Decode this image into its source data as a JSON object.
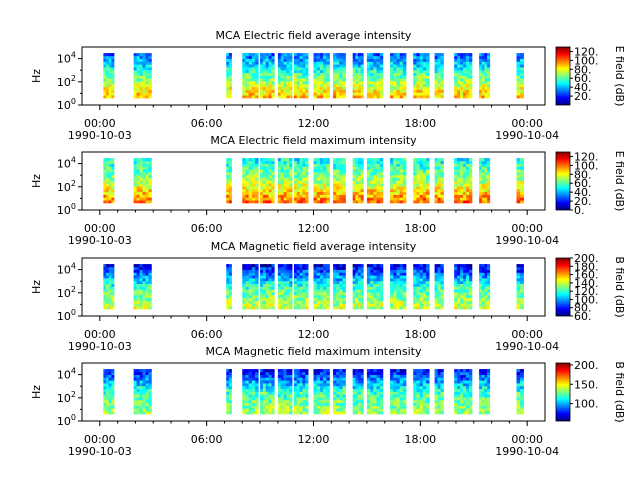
{
  "figure": {
    "x_tick_labels": [
      "00:00",
      "06:00",
      "12:00",
      "18:00",
      "00:00"
    ],
    "date_labels": [
      "1990-10-03",
      "1990-10-04"
    ]
  },
  "chart_data": [
    {
      "type": "heatmap",
      "title": "MCA  Electric field average intensity",
      "ylabel": "Hz",
      "colorbar_label": "E field (dB)",
      "y_scale": "log",
      "y_ticks": [
        {
          "base": "10",
          "exp": "0"
        },
        {
          "base": "10",
          "exp": "2"
        },
        {
          "base": "10",
          "exp": "4"
        }
      ],
      "ylim_hz": [
        1,
        100000
      ],
      "xlim_hours": [
        -1,
        25
      ],
      "colorbar_ticks": [
        "20.",
        "40.",
        "60.",
        "80.",
        "100.",
        "120."
      ],
      "colorbar_tick_values": [
        20,
        40,
        60,
        80,
        100,
        120
      ],
      "colorbar_range": [
        0,
        130
      ],
      "data_segments_hours": [
        [
          0.2,
          0.8
        ],
        [
          1.9,
          2.9
        ],
        [
          7.1,
          7.4
        ],
        [
          8.0,
          8.9
        ],
        [
          9.0,
          9.8
        ],
        [
          10.0,
          10.8
        ],
        [
          10.9,
          11.7
        ],
        [
          12.0,
          12.9
        ],
        [
          13.1,
          13.8
        ],
        [
          14.2,
          14.8
        ],
        [
          15.0,
          15.9
        ],
        [
          16.3,
          17.2
        ],
        [
          17.6,
          18.5
        ],
        [
          18.8,
          19.3
        ],
        [
          19.9,
          20.9
        ],
        [
          21.3,
          21.9
        ],
        [
          23.4,
          23.8
        ]
      ],
      "freq_band_hz": [
        4,
        30000
      ],
      "intensity_profile": {
        "low_freq": 90,
        "mid_freq": 60,
        "high_freq": 30
      }
    },
    {
      "type": "heatmap",
      "title": "MCA  Electric field maximum intensity",
      "ylabel": "Hz",
      "colorbar_label": "E field (dB)",
      "y_scale": "log",
      "y_ticks": [
        {
          "base": "10",
          "exp": "0"
        },
        {
          "base": "10",
          "exp": "2"
        },
        {
          "base": "10",
          "exp": "4"
        }
      ],
      "ylim_hz": [
        1,
        100000
      ],
      "xlim_hours": [
        -1,
        25
      ],
      "colorbar_ticks": [
        "0.",
        "20.",
        "40.",
        "60.",
        "80.",
        "100.",
        "120."
      ],
      "colorbar_tick_values": [
        0,
        20,
        40,
        60,
        80,
        100,
        120
      ],
      "colorbar_range": [
        0,
        130
      ],
      "data_segments_hours": [
        [
          0.2,
          0.8
        ],
        [
          1.9,
          2.9
        ],
        [
          7.1,
          7.4
        ],
        [
          8.0,
          8.9
        ],
        [
          9.0,
          9.8
        ],
        [
          10.0,
          10.8
        ],
        [
          10.9,
          11.7
        ],
        [
          12.0,
          12.9
        ],
        [
          13.1,
          13.8
        ],
        [
          14.2,
          14.8
        ],
        [
          15.0,
          15.9
        ],
        [
          16.3,
          17.2
        ],
        [
          17.6,
          18.5
        ],
        [
          18.8,
          19.3
        ],
        [
          19.9,
          20.9
        ],
        [
          21.3,
          21.9
        ],
        [
          23.4,
          23.8
        ]
      ],
      "freq_band_hz": [
        4,
        30000
      ],
      "intensity_profile": {
        "low_freq": 100,
        "mid_freq": 70,
        "high_freq": 50
      }
    },
    {
      "type": "heatmap",
      "title": "MCA  Magnetic field average intensity",
      "ylabel": "Hz",
      "colorbar_label": "B field (dB)",
      "y_scale": "log",
      "y_ticks": [
        {
          "base": "10",
          "exp": "0"
        },
        {
          "base": "10",
          "exp": "2"
        },
        {
          "base": "10",
          "exp": "4"
        }
      ],
      "ylim_hz": [
        1,
        100000
      ],
      "xlim_hours": [
        -1,
        25
      ],
      "colorbar_ticks": [
        "60.",
        "80.",
        "100.",
        "120.",
        "140.",
        "160.",
        "180.",
        "200."
      ],
      "colorbar_tick_values": [
        60,
        80,
        100,
        120,
        140,
        160,
        180,
        200
      ],
      "colorbar_range": [
        60,
        200
      ],
      "data_segments_hours": [
        [
          0.2,
          0.8
        ],
        [
          1.9,
          2.9
        ],
        [
          7.1,
          7.4
        ],
        [
          8.0,
          8.9
        ],
        [
          9.0,
          9.8
        ],
        [
          10.0,
          10.8
        ],
        [
          10.9,
          11.7
        ],
        [
          12.0,
          12.9
        ],
        [
          13.1,
          13.8
        ],
        [
          14.2,
          14.8
        ],
        [
          15.0,
          15.9
        ],
        [
          16.3,
          17.2
        ],
        [
          17.6,
          18.5
        ],
        [
          18.8,
          19.3
        ],
        [
          19.9,
          20.9
        ],
        [
          21.3,
          21.9
        ],
        [
          23.4,
          23.8
        ]
      ],
      "freq_band_hz": [
        4,
        30000
      ],
      "intensity_profile": {
        "low_freq": 140,
        "mid_freq": 120,
        "high_freq": 75
      }
    },
    {
      "type": "heatmap",
      "title": "MCA  Magnetic field maximum intensity",
      "ylabel": "Hz",
      "colorbar_label": "B field (dB)",
      "y_scale": "log",
      "y_ticks": [
        {
          "base": "10",
          "exp": "0"
        },
        {
          "base": "10",
          "exp": "2"
        },
        {
          "base": "10",
          "exp": "4"
        }
      ],
      "ylim_hz": [
        1,
        100000
      ],
      "xlim_hours": [
        -1,
        25
      ],
      "colorbar_ticks": [
        "100.",
        "150.",
        "200."
      ],
      "colorbar_tick_values": [
        100,
        150,
        200
      ],
      "colorbar_range": [
        55,
        205
      ],
      "data_segments_hours": [
        [
          0.2,
          0.8
        ],
        [
          1.9,
          2.9
        ],
        [
          7.1,
          7.4
        ],
        [
          8.0,
          8.9
        ],
        [
          9.0,
          9.8
        ],
        [
          10.0,
          10.8
        ],
        [
          10.9,
          11.7
        ],
        [
          12.0,
          12.9
        ],
        [
          13.1,
          13.8
        ],
        [
          14.2,
          14.8
        ],
        [
          15.0,
          15.9
        ],
        [
          16.3,
          17.2
        ],
        [
          17.6,
          18.5
        ],
        [
          18.8,
          19.3
        ],
        [
          19.9,
          20.9
        ],
        [
          21.3,
          21.9
        ],
        [
          23.4,
          23.8
        ]
      ],
      "freq_band_hz": [
        4,
        30000
      ],
      "intensity_profile": {
        "low_freq": 135,
        "mid_freq": 120,
        "high_freq": 75
      }
    }
  ]
}
